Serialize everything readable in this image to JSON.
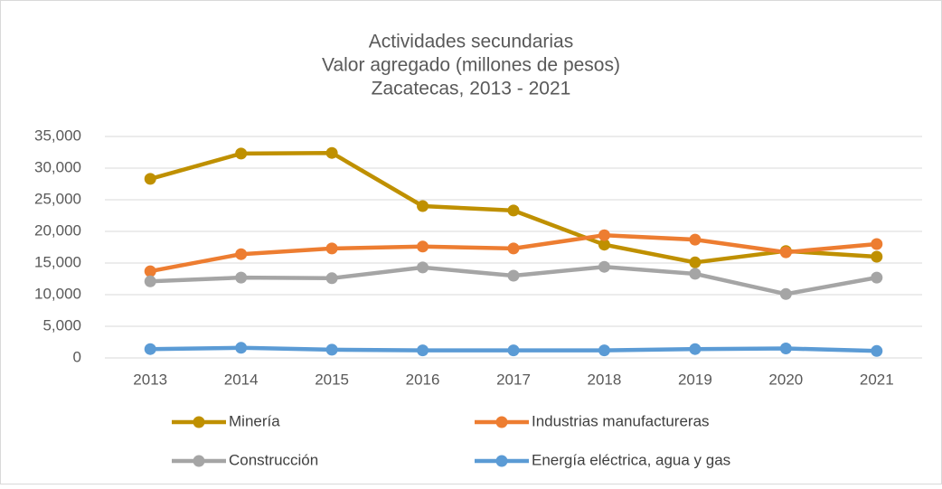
{
  "chart_data": {
    "type": "line",
    "title": [
      "Actividades secundarias",
      "Valor agregado (millones de pesos)",
      "Zacatecas, 2013 - 2021"
    ],
    "categories": [
      "2013",
      "2014",
      "2015",
      "2016",
      "2017",
      "2018",
      "2019",
      "2020",
      "2021"
    ],
    "series": [
      {
        "name": "Minería",
        "color": "#bf9000",
        "values": [
          28300,
          32300,
          32400,
          24000,
          23300,
          17900,
          15100,
          16900,
          16000
        ]
      },
      {
        "name": "Industrias manufactureras",
        "color": "#ed7d31",
        "values": [
          13700,
          16400,
          17300,
          17600,
          17300,
          19400,
          18700,
          16700,
          18000
        ]
      },
      {
        "name": "Construcción",
        "color": "#a5a5a5",
        "values": [
          12100,
          12700,
          12600,
          14300,
          13000,
          14400,
          13300,
          10100,
          12700
        ]
      },
      {
        "name": "Energía eléctrica, agua y gas",
        "color": "#5b9bd5",
        "values": [
          1400,
          1600,
          1300,
          1200,
          1200,
          1200,
          1400,
          1500,
          1100
        ]
      }
    ],
    "ylim": [
      0,
      35000
    ],
    "yticks": [
      0,
      {
        "value": 5000,
        "label": "5,000"
      },
      {
        "value": 10000,
        "label": "10,000"
      },
      {
        "value": 15000,
        "label": "15,000"
      },
      {
        "value": 20000,
        "label": "20,000"
      },
      {
        "value": 25000,
        "label": "25,000"
      },
      {
        "value": 30000,
        "label": "30,000"
      },
      {
        "value": 35000,
        "label": "35,000"
      }
    ],
    "grid": true,
    "legend": "bottom"
  }
}
